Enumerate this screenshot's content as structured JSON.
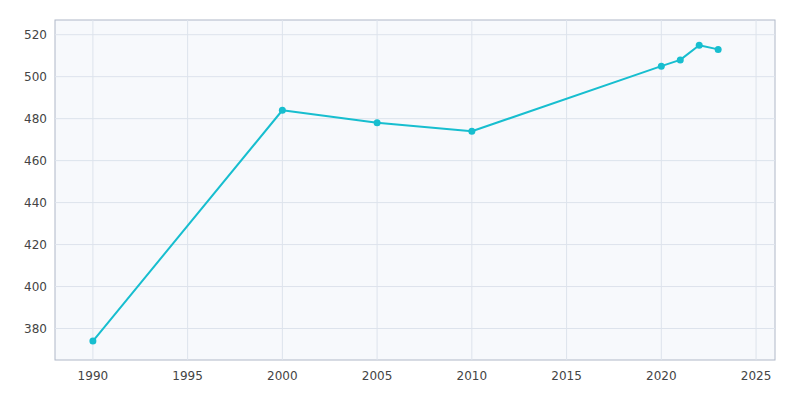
{
  "chart_data": {
    "type": "line",
    "x": [
      1990,
      2000,
      2005,
      2010,
      2020,
      2021,
      2022,
      2023
    ],
    "values": [
      374,
      484,
      478,
      474,
      505,
      508,
      515,
      513
    ],
    "color": "#17BECF",
    "marker": "circle",
    "xlim": [
      1988,
      2026
    ],
    "ylim": [
      365,
      527
    ],
    "xticks": [
      1990,
      1995,
      2000,
      2005,
      2010,
      2015,
      2020,
      2025
    ],
    "yticks": [
      380,
      400,
      420,
      440,
      460,
      480,
      500,
      520
    ],
    "grid": true
  }
}
